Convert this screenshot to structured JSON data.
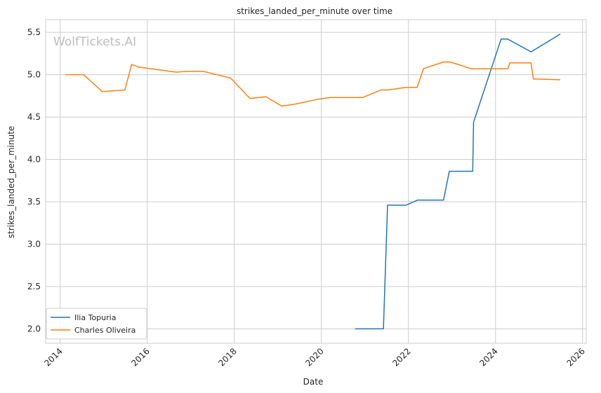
{
  "chart_data": {
    "type": "line",
    "title": "strikes_landed_per_minute over time",
    "xlabel": "Date",
    "ylabel": "strikes_landed_per_minute",
    "watermark": "WolfTickets.AI",
    "x_ticks": [
      "2014",
      "2016",
      "2018",
      "2020",
      "2022",
      "2024",
      "2026"
    ],
    "y_ticks": [
      "2.0",
      "2.5",
      "3.0",
      "3.5",
      "4.0",
      "4.5",
      "5.0",
      "5.5"
    ],
    "xlim": [
      "2013-09-01",
      "2026-02-01"
    ],
    "ylim": [
      1.83,
      5.65
    ],
    "grid": true,
    "legend_position": "lower-left",
    "series": [
      {
        "name": "Ilia Topuria",
        "color": "#1f77b4",
        "points": [
          [
            "2020-10-10",
            2.0
          ],
          [
            "2021-06-05",
            2.0
          ],
          [
            "2021-07-10",
            3.46
          ],
          [
            "2021-12-11",
            3.46
          ],
          [
            "2022-03-19",
            3.52
          ],
          [
            "2022-10-22",
            3.52
          ],
          [
            "2022-12-10",
            3.86
          ],
          [
            "2023-06-24",
            3.86
          ],
          [
            "2023-07-01",
            4.44
          ],
          [
            "2024-02-17",
            5.42
          ],
          [
            "2024-04-13",
            5.42
          ],
          [
            "2024-10-26",
            5.27
          ],
          [
            "2025-06-28",
            5.48
          ]
        ]
      },
      {
        "name": "Charles Oliveira",
        "color": "#ff7f0e",
        "points": [
          [
            "2014-02-15",
            5.0
          ],
          [
            "2014-07-16",
            5.0
          ],
          [
            "2014-12-20",
            4.8
          ],
          [
            "2015-06-27",
            4.82
          ],
          [
            "2015-08-23",
            5.12
          ],
          [
            "2015-10-20",
            5.09
          ],
          [
            "2016-09-01",
            5.03
          ],
          [
            "2016-12-01",
            5.04
          ],
          [
            "2017-04-15",
            5.04
          ],
          [
            "2017-12-02",
            4.96
          ],
          [
            "2018-05-12",
            4.72
          ],
          [
            "2018-09-22",
            4.74
          ],
          [
            "2019-02-02",
            4.63
          ],
          [
            "2019-05-18",
            4.65
          ],
          [
            "2019-12-01",
            4.71
          ],
          [
            "2020-03-14",
            4.73
          ],
          [
            "2020-12-12",
            4.73
          ],
          [
            "2021-05-15",
            4.82
          ],
          [
            "2021-07-15",
            4.82
          ],
          [
            "2021-12-11",
            4.85
          ],
          [
            "2022-03-15",
            4.85
          ],
          [
            "2022-05-07",
            5.07
          ],
          [
            "2022-10-22",
            5.15
          ],
          [
            "2022-12-20",
            5.15
          ],
          [
            "2023-06-10",
            5.07
          ],
          [
            "2024-04-13",
            5.07
          ],
          [
            "2024-05-01",
            5.14
          ],
          [
            "2024-10-25",
            5.14
          ],
          [
            "2024-11-15",
            4.95
          ],
          [
            "2025-06-28",
            4.94
          ]
        ]
      }
    ]
  }
}
